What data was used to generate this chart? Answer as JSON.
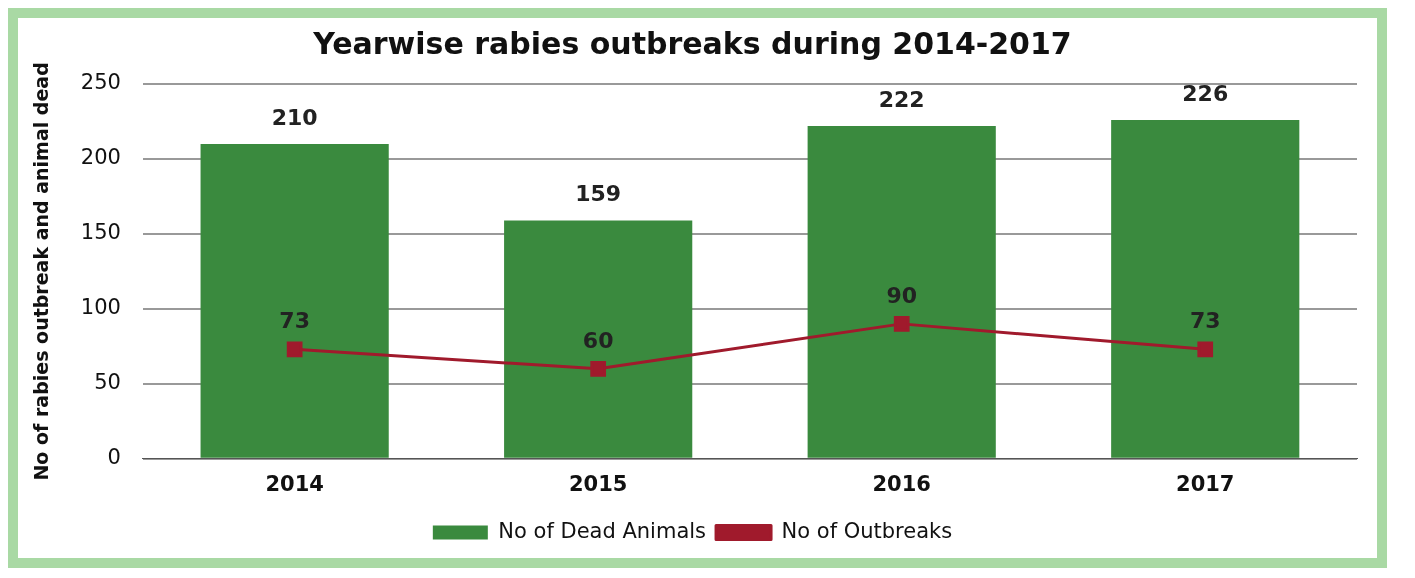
{
  "chart_data": {
    "type": "bar",
    "title": "Yearwise rabies outbreaks during 2014-2017",
    "ylabel": "No of rabies outbreak and animal dead",
    "categories": [
      "2014",
      "2015",
      "2016",
      "2017"
    ],
    "series": [
      {
        "name": "No of Dead Animals",
        "color": "#3a8a3e",
        "values": [
          210,
          159,
          222,
          226
        ]
      },
      {
        "name": "No of Outbreaks",
        "type": "line",
        "color": "#a01a2c",
        "marker": "square",
        "values": [
          73,
          60,
          90,
          73
        ]
      }
    ],
    "ylim": [
      0,
      250
    ],
    "yticks": [
      0,
      50,
      100,
      150,
      200,
      250
    ],
    "grid": "y",
    "legend": "bottom",
    "data_labels": true
  }
}
